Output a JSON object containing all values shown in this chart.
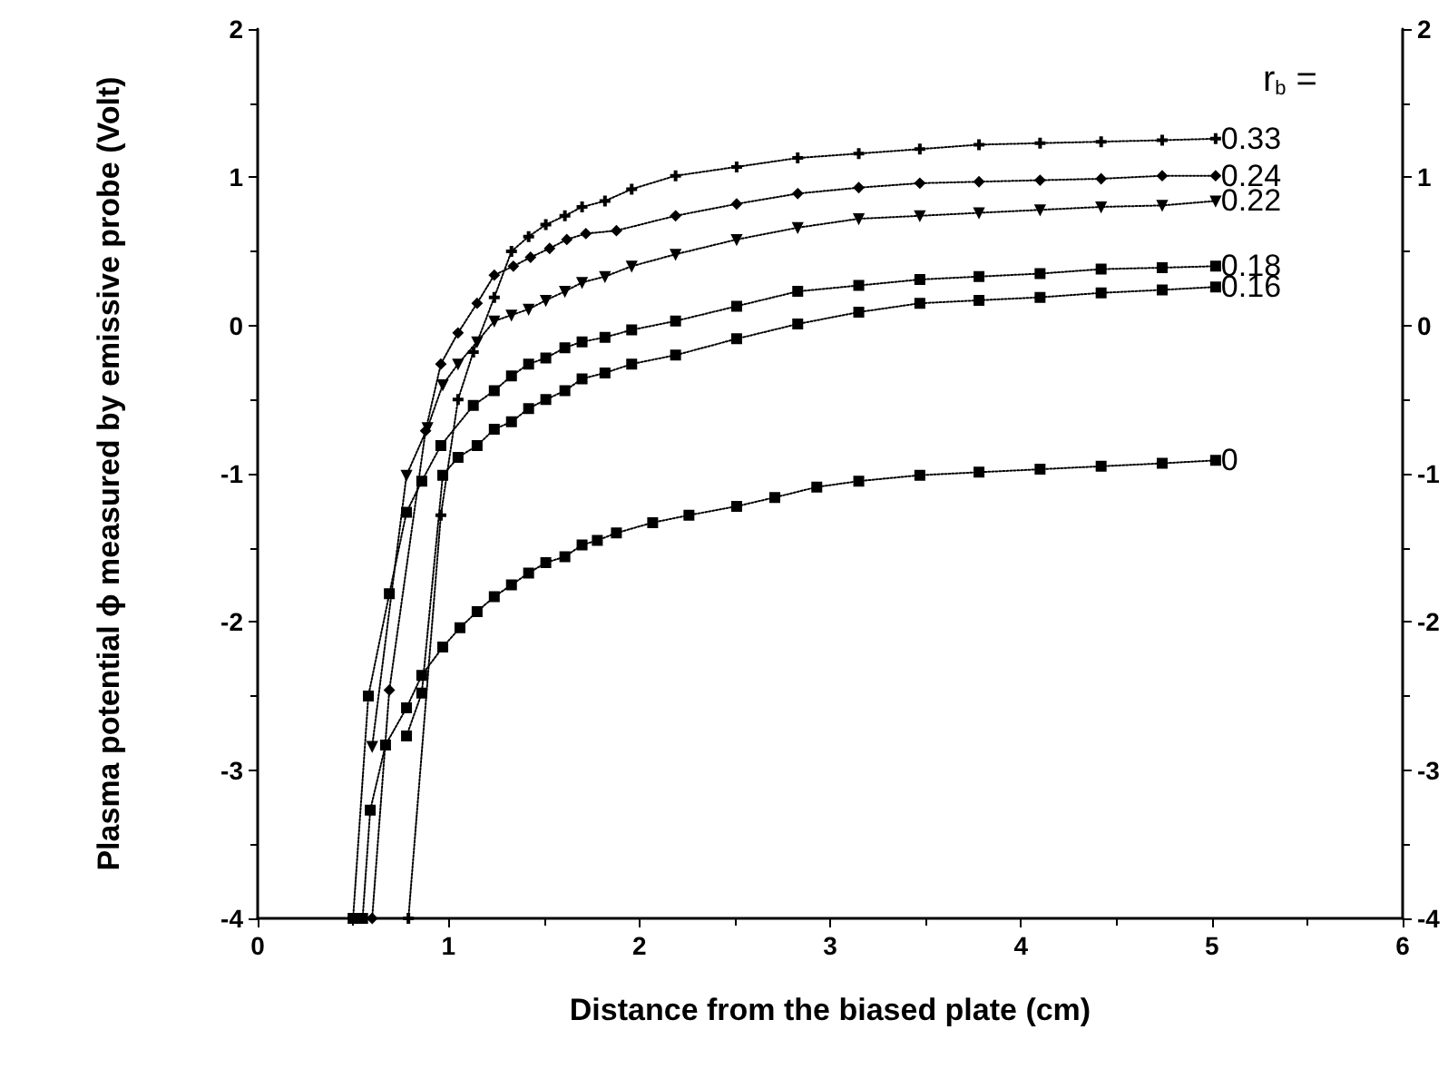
{
  "chart_data": {
    "type": "line",
    "xlabel": "Distance from the biased plate (cm)",
    "ylabel": "Plasma potential ϕ measured by emissive probe (Volt)",
    "legend_title": "r$_{b}$ =",
    "xlim": [
      0,
      6
    ],
    "xticks": [
      0,
      1,
      2,
      3,
      4,
      5,
      6
    ],
    "ylim": [
      -4,
      2
    ],
    "yticks": [
      -4,
      -3,
      -2,
      -1,
      0,
      1,
      2
    ],
    "y2lim": [
      -4,
      2
    ],
    "y2ticks": [
      -4,
      -3,
      -2,
      -1,
      0,
      1,
      2
    ],
    "grid": false,
    "legend": false,
    "line_style": "dotted",
    "series": [
      {
        "name": "0.33",
        "color": "#000000",
        "marker": "cross",
        "x": [
          0.79,
          0.96,
          1.05,
          1.13,
          1.24,
          1.33,
          1.42,
          1.51,
          1.61,
          1.7,
          1.82,
          1.96,
          2.19,
          2.51,
          2.83,
          3.15,
          3.47,
          3.78,
          4.1,
          4.42,
          4.74,
          5.02
        ],
        "values": [
          -4,
          -1.28,
          -0.5,
          -0.18,
          0.19,
          0.5,
          0.6,
          0.68,
          0.74,
          0.8,
          0.84,
          0.92,
          1.01,
          1.07,
          1.13,
          1.16,
          1.19,
          1.22,
          1.23,
          1.24,
          1.25,
          1.26
        ]
      },
      {
        "name": "0.24",
        "color": "#000000",
        "marker": "diamond",
        "x": [
          0.6,
          0.69,
          0.88,
          0.96,
          1.05,
          1.15,
          1.24,
          1.34,
          1.43,
          1.53,
          1.62,
          1.72,
          1.88,
          2.19,
          2.51,
          2.83,
          3.15,
          3.47,
          3.78,
          4.1,
          4.42,
          4.74,
          5.02
        ],
        "values": [
          -4,
          -2.46,
          -0.71,
          -0.26,
          -0.05,
          0.15,
          0.34,
          0.4,
          0.46,
          0.52,
          0.58,
          0.62,
          0.64,
          0.74,
          0.82,
          0.89,
          0.93,
          0.96,
          0.97,
          0.98,
          0.99,
          1.01,
          1.01
        ]
      },
      {
        "name": "0.22",
        "color": "#000000",
        "marker": "triangle",
        "x": [
          0.6,
          0.78,
          0.89,
          0.97,
          1.05,
          1.15,
          1.24,
          1.33,
          1.42,
          1.51,
          1.61,
          1.7,
          1.82,
          1.96,
          2.19,
          2.51,
          2.83,
          3.15,
          3.47,
          3.78,
          4.1,
          4.42,
          4.74,
          5.02
        ],
        "values": [
          -2.84,
          -1.01,
          -0.69,
          -0.4,
          -0.26,
          -0.11,
          0.03,
          0.07,
          0.11,
          0.17,
          0.23,
          0.29,
          0.33,
          0.4,
          0.48,
          0.58,
          0.66,
          0.72,
          0.74,
          0.76,
          0.78,
          0.8,
          0.81,
          0.84
        ]
      },
      {
        "name": "0.18",
        "color": "#000000",
        "marker": "square",
        "x": [
          0.5,
          0.58,
          0.69,
          0.78,
          0.86,
          0.96,
          1.13,
          1.24,
          1.33,
          1.42,
          1.51,
          1.61,
          1.7,
          1.82,
          1.96,
          2.19,
          2.51,
          2.83,
          3.15,
          3.47,
          3.78,
          4.1,
          4.42,
          4.74,
          5.02
        ],
        "values": [
          -4,
          -2.5,
          -1.81,
          -1.26,
          -1.05,
          -0.81,
          -0.54,
          -0.44,
          -0.34,
          -0.26,
          -0.22,
          -0.15,
          -0.11,
          -0.08,
          -0.03,
          0.03,
          0.13,
          0.23,
          0.27,
          0.31,
          0.33,
          0.35,
          0.38,
          0.39,
          0.4
        ]
      },
      {
        "name": "0.16",
        "color": "#000000",
        "marker": "square",
        "x": [
          0.78,
          0.86,
          0.97,
          1.05,
          1.15,
          1.24,
          1.33,
          1.42,
          1.51,
          1.61,
          1.7,
          1.82,
          1.96,
          2.19,
          2.51,
          2.83,
          3.15,
          3.47,
          3.78,
          4.1,
          4.42,
          4.74,
          5.02
        ],
        "values": [
          -2.77,
          -2.48,
          -1.01,
          -0.89,
          -0.81,
          -0.7,
          -0.65,
          -0.56,
          -0.5,
          -0.44,
          -0.36,
          -0.32,
          -0.26,
          -0.2,
          -0.09,
          0.01,
          0.09,
          0.15,
          0.17,
          0.19,
          0.22,
          0.24,
          0.26
        ]
      },
      {
        "name": "0",
        "color": "#000000",
        "marker": "square",
        "x": [
          0.55,
          0.59,
          0.67,
          0.78,
          0.86,
          0.97,
          1.06,
          1.15,
          1.24,
          1.33,
          1.42,
          1.51,
          1.61,
          1.7,
          1.78,
          1.88,
          2.07,
          2.26,
          2.51,
          2.71,
          2.93,
          3.15,
          3.47,
          3.78,
          4.1,
          4.42,
          4.74,
          5.02
        ],
        "values": [
          -4,
          -3.27,
          -2.83,
          -2.58,
          -2.36,
          -2.17,
          -2.04,
          -1.93,
          -1.83,
          -1.75,
          -1.67,
          -1.6,
          -1.56,
          -1.48,
          -1.45,
          -1.4,
          -1.33,
          -1.28,
          -1.22,
          -1.16,
          -1.09,
          -1.05,
          -1.01,
          -0.99,
          -0.97,
          -0.95,
          -0.93,
          -0.91
        ]
      }
    ]
  }
}
